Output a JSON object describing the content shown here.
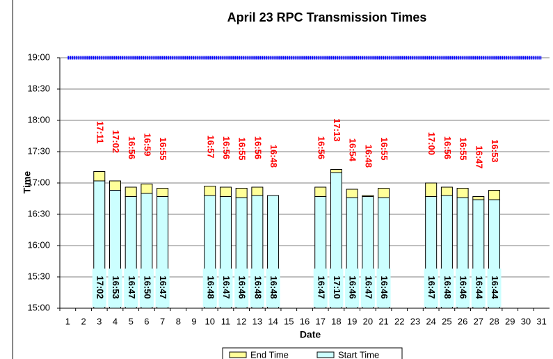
{
  "chart_data": {
    "type": "bar",
    "title": "April 23 RPC Transmission Times",
    "x_label": "Date",
    "y_label": "Time",
    "categories": [
      1,
      2,
      3,
      4,
      5,
      6,
      7,
      8,
      9,
      10,
      11,
      12,
      13,
      14,
      15,
      16,
      17,
      18,
      19,
      20,
      21,
      22,
      23,
      24,
      25,
      26,
      27,
      28,
      29,
      30,
      31
    ],
    "series": [
      {
        "name": "Start Time",
        "color": "#ccffff",
        "values": [
          null,
          null,
          1022,
          1013,
          1007,
          1010,
          1007,
          null,
          null,
          1008,
          1007,
          1006,
          1008,
          1008,
          null,
          null,
          1007,
          1030,
          1006,
          1007,
          1006,
          null,
          null,
          1007,
          1008,
          1006,
          1004,
          1004,
          null,
          null,
          null
        ],
        "value_labels": [
          null,
          null,
          "17:02",
          "16:53",
          "16:47",
          "16:50",
          "16:47",
          null,
          null,
          "16:48",
          "16:47",
          "16:46",
          "16:48",
          "16:48",
          null,
          null,
          "16:47",
          "17:10",
          "16:46",
          "16:47",
          "16:46",
          null,
          null,
          "16:47",
          "16:48",
          "16:46",
          "16:44",
          "16:44",
          null,
          null,
          null
        ]
      },
      {
        "name": "End Time",
        "color": "#ffff99",
        "values": [
          null,
          null,
          1031,
          1022,
          1016,
          1019,
          1015,
          null,
          null,
          1017,
          1016,
          1015,
          1016,
          1008,
          null,
          null,
          1016,
          1033,
          1014,
          1008,
          1015,
          null,
          null,
          1020,
          1016,
          1015,
          1007,
          1013,
          null,
          null,
          null
        ],
        "value_labels": [
          null,
          null,
          "17:11",
          "17:02",
          "16:56",
          "16:59",
          "16:55",
          null,
          null,
          "16:57",
          "16:56",
          "16:55",
          "16:56",
          "16:48",
          null,
          null,
          "16:56",
          "17:13",
          "16:54",
          "16:48",
          "16:55",
          null,
          null,
          "17:00",
          "16:56",
          "16:55",
          "16:47",
          "16:53",
          null,
          null,
          null
        ]
      }
    ],
    "reference_line": {
      "value": 1140,
      "color": "#0000ff"
    },
    "ylim": [
      900,
      1140
    ],
    "yticks": [
      {
        "value": 900,
        "label": "15:00"
      },
      {
        "value": 930,
        "label": "15:30"
      },
      {
        "value": 960,
        "label": "16:00"
      },
      {
        "value": 990,
        "label": "16:30"
      },
      {
        "value": 1020,
        "label": "17:00"
      },
      {
        "value": 1050,
        "label": "17:30"
      },
      {
        "value": 1080,
        "label": "18:00"
      },
      {
        "value": 1110,
        "label": "18:30"
      },
      {
        "value": 1140,
        "label": "19:00"
      }
    ],
    "grid": true
  }
}
